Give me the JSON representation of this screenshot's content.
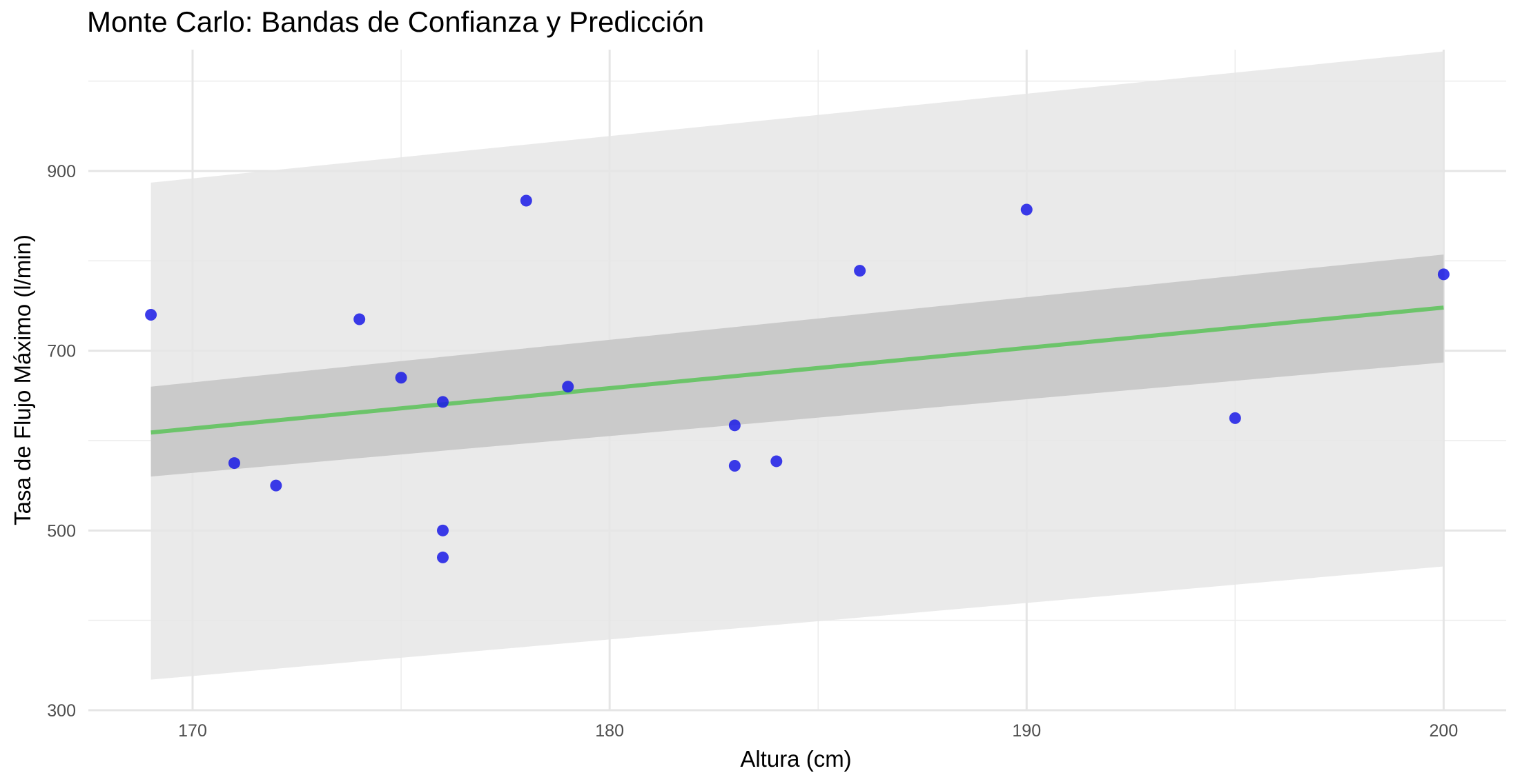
{
  "chart_data": {
    "type": "scatter",
    "title": "Monte Carlo: Bandas de Confianza y Predicción",
    "xlabel": "Altura (cm)",
    "ylabel": "Tasa de Flujo Máximo (l/min)",
    "xlim": [
      167.5,
      201.5
    ],
    "ylim": [
      300,
      1035
    ],
    "x_ticks": [
      170,
      180,
      190,
      200
    ],
    "y_ticks": [
      300,
      500,
      700,
      900
    ],
    "grid": true,
    "legend": "none",
    "points": [
      {
        "x": 169,
        "y": 740
      },
      {
        "x": 171,
        "y": 575
      },
      {
        "x": 172,
        "y": 550
      },
      {
        "x": 174,
        "y": 735
      },
      {
        "x": 175,
        "y": 670
      },
      {
        "x": 176,
        "y": 643
      },
      {
        "x": 176,
        "y": 500
      },
      {
        "x": 176,
        "y": 470
      },
      {
        "x": 178,
        "y": 867
      },
      {
        "x": 179,
        "y": 660
      },
      {
        "x": 183,
        "y": 617
      },
      {
        "x": 183,
        "y": 572
      },
      {
        "x": 184,
        "y": 577
      },
      {
        "x": 186,
        "y": 789
      },
      {
        "x": 190,
        "y": 857
      },
      {
        "x": 195,
        "y": 625
      },
      {
        "x": 200,
        "y": 785
      }
    ],
    "fit_line": {
      "x": [
        169,
        200
      ],
      "y": [
        609,
        748
      ]
    },
    "confidence_band": {
      "x": [
        169,
        200
      ],
      "lower": [
        560,
        687
      ],
      "upper": [
        660,
        807
      ]
    },
    "prediction_band": {
      "x": [
        169,
        200
      ],
      "lower": [
        334,
        460
      ],
      "upper": [
        887,
        1033
      ]
    },
    "colors": {
      "points": "#1a1ae6",
      "fit_line": "#6cc46a",
      "confidence_band": "#c4c4c4",
      "prediction_band": "#e6e6e6",
      "grid": "#e5e5e5"
    }
  }
}
